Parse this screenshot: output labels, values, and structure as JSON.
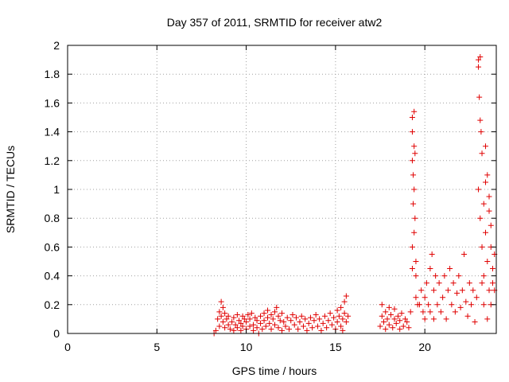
{
  "chart_data": {
    "type": "scatter",
    "title": "Day 357 of 2011, SRMTID for receiver atw2",
    "xlabel": "GPS time / hours",
    "ylabel": "SRMTID / TECUs",
    "xlim": [
      0,
      24
    ],
    "ylim": [
      0,
      2
    ],
    "xticks": [
      0,
      5,
      10,
      15,
      20
    ],
    "yticks": [
      0,
      0.2,
      0.4,
      0.6,
      0.8,
      1,
      1.2,
      1.4,
      1.6,
      1.8,
      2
    ],
    "grid": true,
    "marker": "+",
    "color": "#e00000",
    "series": [
      {
        "points": [
          [
            8.2,
            0.0
          ],
          [
            8.3,
            0.02
          ],
          [
            8.4,
            0.1
          ],
          [
            8.5,
            0.15
          ],
          [
            8.5,
            0.05
          ],
          [
            8.6,
            0.22
          ],
          [
            8.6,
            0.12
          ],
          [
            8.7,
            0.18
          ],
          [
            8.7,
            0.08
          ],
          [
            8.8,
            0.14
          ],
          [
            8.8,
            0.04
          ],
          [
            8.9,
            0.1
          ],
          [
            9.0,
            0.06
          ],
          [
            9.0,
            0.12
          ],
          [
            9.1,
            0.03
          ],
          [
            9.2,
            0.08
          ],
          [
            9.3,
            0.11
          ],
          [
            9.3,
            0.02
          ],
          [
            9.4,
            0.06
          ],
          [
            9.5,
            0.13
          ],
          [
            9.5,
            0.04
          ],
          [
            9.6,
            0.09
          ],
          [
            9.7,
            0.02
          ],
          [
            9.7,
            0.07
          ],
          [
            9.8,
            0.12
          ],
          [
            9.8,
            0.05
          ],
          [
            9.9,
            0.1
          ],
          [
            10.0,
            0.03
          ],
          [
            10.0,
            0.08
          ],
          [
            10.1,
            0.13
          ],
          [
            10.2,
            0.05
          ],
          [
            10.2,
            0.1
          ],
          [
            10.3,
            0.14
          ],
          [
            10.4,
            0.06
          ],
          [
            10.4,
            0.02
          ],
          [
            10.5,
            0.11
          ],
          [
            10.6,
            0.04
          ],
          [
            10.6,
            0.09
          ],
          [
            10.7,
            0.0
          ],
          [
            10.8,
            0.07
          ],
          [
            10.8,
            0.12
          ],
          [
            10.9,
            0.03
          ],
          [
            11.0,
            0.09
          ],
          [
            11.0,
            0.14
          ],
          [
            11.1,
            0.05
          ],
          [
            11.2,
            0.11
          ],
          [
            11.2,
            0.16
          ],
          [
            11.3,
            0.07
          ],
          [
            11.4,
            0.13
          ],
          [
            11.4,
            0.03
          ],
          [
            11.5,
            0.1
          ],
          [
            11.6,
            0.15
          ],
          [
            11.6,
            0.06
          ],
          [
            11.7,
            0.18
          ],
          [
            11.8,
            0.12
          ],
          [
            11.8,
            0.04
          ],
          [
            11.9,
            0.09
          ],
          [
            12.0,
            0.14
          ],
          [
            12.0,
            0.02
          ],
          [
            12.1,
            0.08
          ],
          [
            12.2,
            0.05
          ],
          [
            12.3,
            0.11
          ],
          [
            12.4,
            0.03
          ],
          [
            12.5,
            0.09
          ],
          [
            12.6,
            0.13
          ],
          [
            12.7,
            0.06
          ],
          [
            12.8,
            0.11
          ],
          [
            12.9,
            0.03
          ],
          [
            13.0,
            0.08
          ],
          [
            13.1,
            0.12
          ],
          [
            13.2,
            0.05
          ],
          [
            13.3,
            0.1
          ],
          [
            13.4,
            0.02
          ],
          [
            13.5,
            0.07
          ],
          [
            13.6,
            0.11
          ],
          [
            13.7,
            0.04
          ],
          [
            13.8,
            0.09
          ],
          [
            13.9,
            0.13
          ],
          [
            14.0,
            0.05
          ],
          [
            14.1,
            0.1
          ],
          [
            14.2,
            0.02
          ],
          [
            14.3,
            0.07
          ],
          [
            14.4,
            0.12
          ],
          [
            14.5,
            0.04
          ],
          [
            14.6,
            0.09
          ],
          [
            14.7,
            0.14
          ],
          [
            14.8,
            0.06
          ],
          [
            14.9,
            0.11
          ],
          [
            15.0,
            0.03
          ],
          [
            15.1,
            0.16
          ],
          [
            15.1,
            0.08
          ],
          [
            15.2,
            0.12
          ],
          [
            15.3,
            0.05
          ],
          [
            15.3,
            0.18
          ],
          [
            15.4,
            0.1
          ],
          [
            15.4,
            0.02
          ],
          [
            15.5,
            0.14
          ],
          [
            15.5,
            0.22
          ],
          [
            15.6,
            0.26
          ],
          [
            15.6,
            0.08
          ],
          [
            15.7,
            0.12
          ],
          [
            17.5,
            0.05
          ],
          [
            17.6,
            0.12
          ],
          [
            17.6,
            0.2
          ],
          [
            17.7,
            0.08
          ],
          [
            17.8,
            0.15
          ],
          [
            17.8,
            0.03
          ],
          [
            17.9,
            0.1
          ],
          [
            18.0,
            0.18
          ],
          [
            18.0,
            0.06
          ],
          [
            18.1,
            0.13
          ],
          [
            18.2,
            0.04
          ],
          [
            18.3,
            0.1
          ],
          [
            18.3,
            0.17
          ],
          [
            18.4,
            0.07
          ],
          [
            18.5,
            0.12
          ],
          [
            18.6,
            0.03
          ],
          [
            18.6,
            0.09
          ],
          [
            18.7,
            0.14
          ],
          [
            18.8,
            0.05
          ],
          [
            18.9,
            0.1
          ],
          [
            19.0,
            0.08
          ],
          [
            19.1,
            0.04
          ],
          [
            19.2,
            0.15
          ],
          [
            19.3,
            1.5
          ],
          [
            19.3,
            1.4
          ],
          [
            19.3,
            1.2
          ],
          [
            19.35,
            1.1
          ],
          [
            19.35,
            0.9
          ],
          [
            19.4,
            1.54
          ],
          [
            19.4,
            1.3
          ],
          [
            19.4,
            1.0
          ],
          [
            19.45,
            1.25
          ],
          [
            19.45,
            0.8
          ],
          [
            19.3,
            0.6
          ],
          [
            19.4,
            0.7
          ],
          [
            19.5,
            0.5
          ],
          [
            19.5,
            0.4
          ],
          [
            19.5,
            0.25
          ],
          [
            19.6,
            0.2
          ],
          [
            19.3,
            0.45
          ],
          [
            19.7,
            0.2
          ],
          [
            19.8,
            0.3
          ],
          [
            19.9,
            0.15
          ],
          [
            20.0,
            0.25
          ],
          [
            20.0,
            0.1
          ],
          [
            20.1,
            0.35
          ],
          [
            20.2,
            0.2
          ],
          [
            20.3,
            0.45
          ],
          [
            20.3,
            0.15
          ],
          [
            20.4,
            0.55
          ],
          [
            20.5,
            0.3
          ],
          [
            20.5,
            0.1
          ],
          [
            20.6,
            0.4
          ],
          [
            20.7,
            0.2
          ],
          [
            20.8,
            0.35
          ],
          [
            20.9,
            0.15
          ],
          [
            21.0,
            0.25
          ],
          [
            21.1,
            0.4
          ],
          [
            21.2,
            0.1
          ],
          [
            21.3,
            0.3
          ],
          [
            21.4,
            0.45
          ],
          [
            21.5,
            0.2
          ],
          [
            21.6,
            0.35
          ],
          [
            21.7,
            0.15
          ],
          [
            21.8,
            0.28
          ],
          [
            21.9,
            0.4
          ],
          [
            22.0,
            0.18
          ],
          [
            22.1,
            0.3
          ],
          [
            22.2,
            0.55
          ],
          [
            22.3,
            0.22
          ],
          [
            22.4,
            0.12
          ],
          [
            22.5,
            0.35
          ],
          [
            22.6,
            0.2
          ],
          [
            22.7,
            0.3
          ],
          [
            22.8,
            0.08
          ],
          [
            22.9,
            0.25
          ],
          [
            23.0,
            1.9
          ],
          [
            23.0,
            1.85
          ],
          [
            23.05,
            1.64
          ],
          [
            23.1,
            1.92
          ],
          [
            23.1,
            1.48
          ],
          [
            23.15,
            1.4
          ],
          [
            23.2,
            1.25
          ],
          [
            23.0,
            1.0
          ],
          [
            23.1,
            0.8
          ],
          [
            23.2,
            0.6
          ],
          [
            23.3,
            0.9
          ],
          [
            23.3,
            0.4
          ],
          [
            23.4,
            0.7
          ],
          [
            23.4,
            1.3
          ],
          [
            23.5,
            1.1
          ],
          [
            23.5,
            0.5
          ],
          [
            23.6,
            0.85
          ],
          [
            23.6,
            0.3
          ],
          [
            23.7,
            0.6
          ],
          [
            23.7,
            0.2
          ],
          [
            23.8,
            0.45
          ],
          [
            23.8,
            0.35
          ],
          [
            23.9,
            0.3
          ],
          [
            23.9,
            0.55
          ],
          [
            23.5,
            0.1
          ],
          [
            23.3,
            0.2
          ],
          [
            23.2,
            0.35
          ],
          [
            23.4,
            1.05
          ],
          [
            23.6,
            0.95
          ],
          [
            23.7,
            0.75
          ]
        ]
      }
    ]
  }
}
